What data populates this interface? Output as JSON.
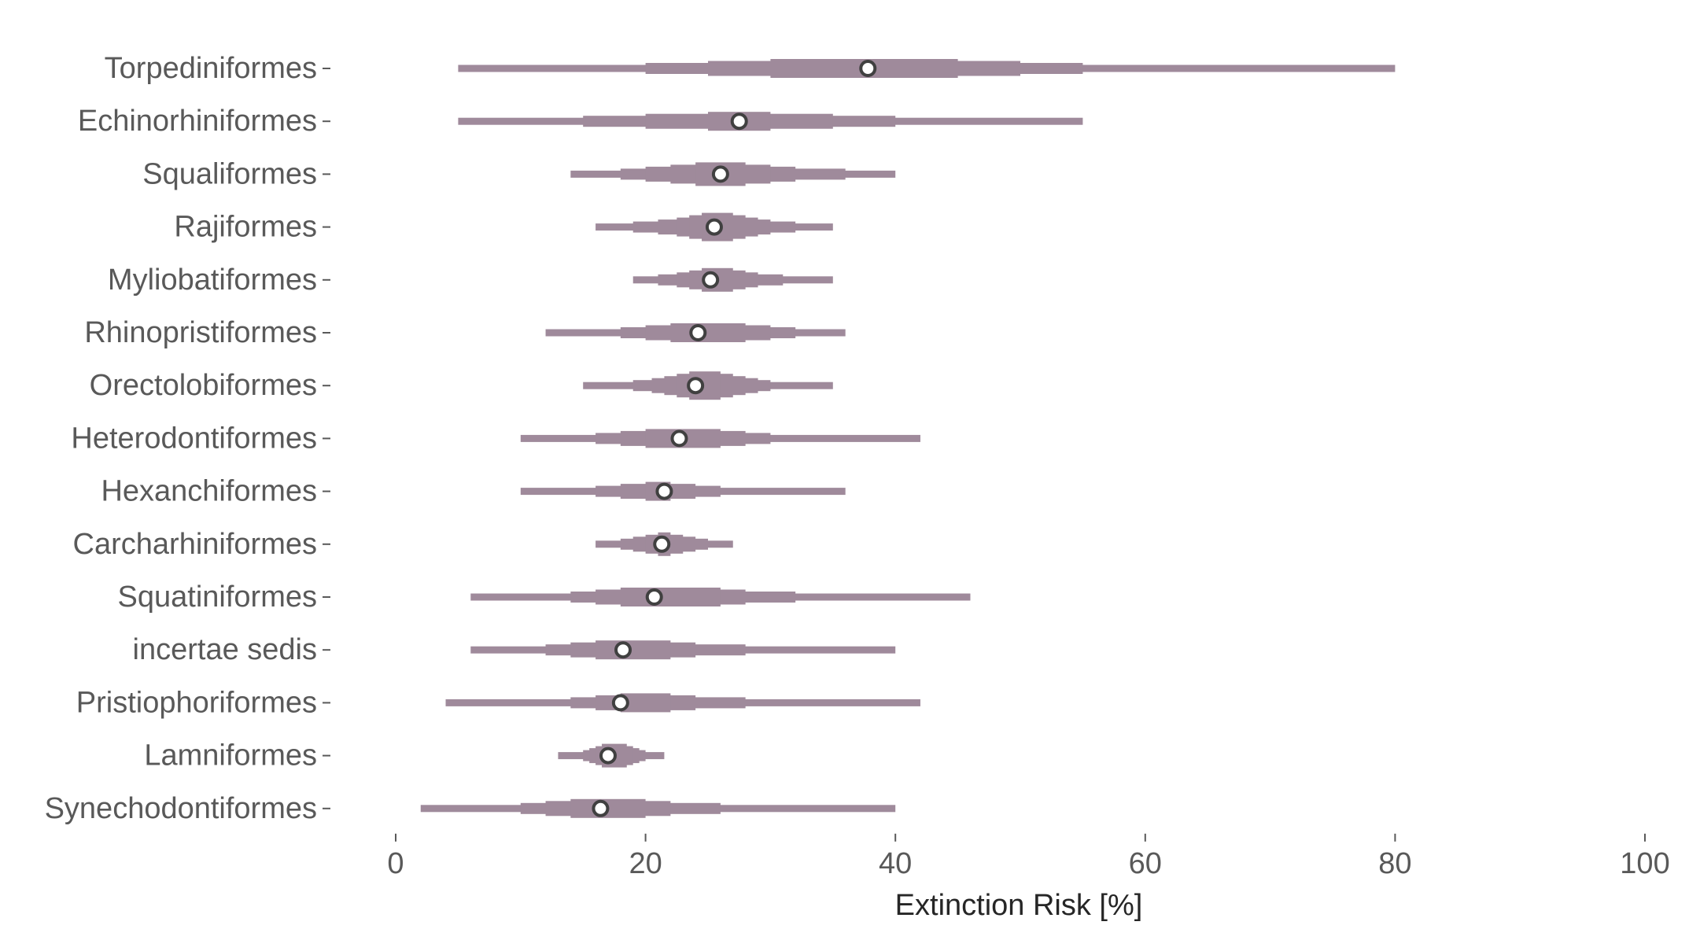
{
  "chart_data": {
    "type": "interval",
    "xlabel": "Extinction Risk [%]",
    "ylabel": "",
    "xlim": [
      0,
      100
    ],
    "xticks": [
      0,
      20,
      40,
      60,
      80,
      100
    ],
    "grid": false,
    "legend": "none",
    "colors": {
      "interval": "#9f8a9b",
      "point_fill": "#ffffff",
      "point_stroke": "#404040",
      "tick_label": "#595959",
      "axis_title": "#262626"
    },
    "categories": [
      "Torpediniformes",
      "Echinorhiniformes",
      "Squaliformes",
      "Rajiformes",
      "Myliobatiformes",
      "Rhinopristiformes",
      "Orectolobiformes",
      "Heterodontiformes",
      "Hexanchiformes",
      "Carcharhiniformes",
      "Squatiniformes",
      "incertae sedis",
      "Pristiophoriformes",
      "Lamniformes",
      "Synechodontiformes"
    ],
    "series": [
      {
        "category": "Torpediniformes",
        "point": 37.8,
        "intervals": [
          [
            5,
            80
          ],
          [
            20,
            55
          ],
          [
            25,
            50
          ],
          [
            30,
            45
          ]
        ]
      },
      {
        "category": "Echinorhiniformes",
        "point": 27.5,
        "intervals": [
          [
            5,
            55
          ],
          [
            15,
            40
          ],
          [
            20,
            35
          ],
          [
            25,
            30
          ]
        ]
      },
      {
        "category": "Squaliformes",
        "point": 26.0,
        "intervals": [
          [
            14,
            40
          ],
          [
            18,
            36
          ],
          [
            20,
            32
          ],
          [
            22,
            30
          ],
          [
            24,
            28
          ]
        ]
      },
      {
        "category": "Rajiformes",
        "point": 25.5,
        "intervals": [
          [
            16,
            35
          ],
          [
            19,
            32
          ],
          [
            21,
            30
          ],
          [
            22.5,
            29
          ],
          [
            23.5,
            28
          ],
          [
            24.5,
            27
          ]
        ]
      },
      {
        "category": "Myliobatiformes",
        "point": 25.2,
        "intervals": [
          [
            19,
            35
          ],
          [
            21,
            31
          ],
          [
            22.5,
            29
          ],
          [
            23.5,
            28
          ],
          [
            24.5,
            27
          ]
        ]
      },
      {
        "category": "Rhinopristiformes",
        "point": 24.2,
        "intervals": [
          [
            12,
            36
          ],
          [
            18,
            32
          ],
          [
            20,
            30
          ],
          [
            22,
            28
          ]
        ]
      },
      {
        "category": "Orectolobiformes",
        "point": 24.0,
        "intervals": [
          [
            15,
            35
          ],
          [
            19,
            30
          ],
          [
            20.5,
            29
          ],
          [
            21.5,
            28
          ],
          [
            22.5,
            27
          ],
          [
            23.5,
            26
          ]
        ]
      },
      {
        "category": "Heterodontiformes",
        "point": 22.7,
        "intervals": [
          [
            10,
            42
          ],
          [
            16,
            30
          ],
          [
            18,
            28
          ],
          [
            20,
            26
          ]
        ]
      },
      {
        "category": "Hexanchiformes",
        "point": 21.5,
        "intervals": [
          [
            10,
            36
          ],
          [
            16,
            26
          ],
          [
            18,
            24
          ],
          [
            20,
            22
          ]
        ]
      },
      {
        "category": "Carcharhiniformes",
        "point": 21.3,
        "intervals": [
          [
            16,
            27
          ],
          [
            18,
            25
          ],
          [
            19,
            24
          ],
          [
            20,
            23
          ],
          [
            21,
            22
          ]
        ]
      },
      {
        "category": "Squatiniformes",
        "point": 20.7,
        "intervals": [
          [
            6,
            46
          ],
          [
            14,
            32
          ],
          [
            16,
            28
          ],
          [
            18,
            26
          ]
        ]
      },
      {
        "category": "incertae sedis",
        "point": 18.2,
        "intervals": [
          [
            6,
            40
          ],
          [
            12,
            28
          ],
          [
            14,
            24
          ],
          [
            16,
            22
          ]
        ]
      },
      {
        "category": "Pristiophoriformes",
        "point": 18.0,
        "intervals": [
          [
            4,
            42
          ],
          [
            14,
            28
          ],
          [
            16,
            24
          ],
          [
            18,
            22
          ]
        ]
      },
      {
        "category": "Lamniformes",
        "point": 17.0,
        "intervals": [
          [
            13,
            21.5
          ],
          [
            15,
            20
          ],
          [
            15.5,
            19.5
          ],
          [
            16,
            19
          ],
          [
            16.5,
            18.5
          ]
        ]
      },
      {
        "category": "Synechodontiformes",
        "point": 16.4,
        "intervals": [
          [
            2,
            40
          ],
          [
            10,
            26
          ],
          [
            12,
            22
          ],
          [
            14,
            20
          ]
        ]
      }
    ]
  }
}
